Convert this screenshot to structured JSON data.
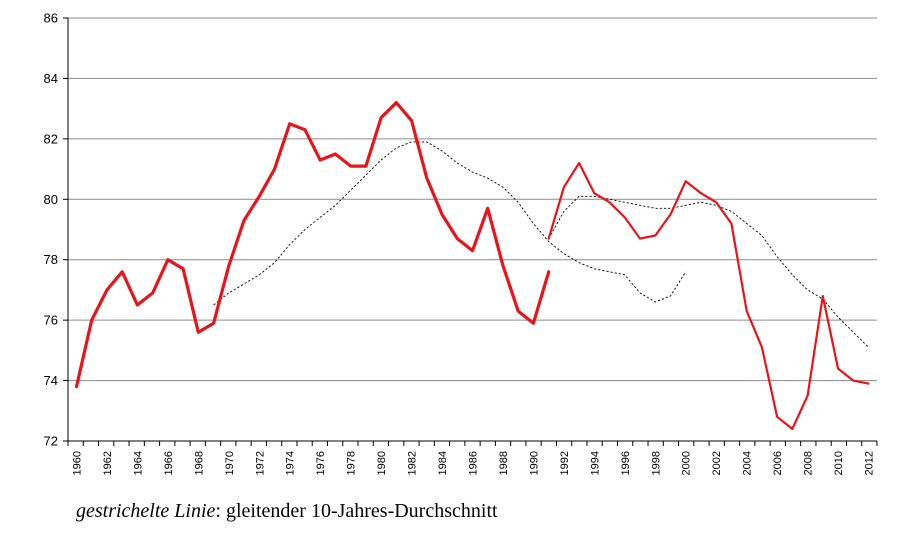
{
  "chart_data": {
    "type": "line",
    "title": "",
    "xlabel": "",
    "ylabel": "",
    "ylim": [
      72,
      86
    ],
    "yticks": [
      72,
      74,
      76,
      78,
      80,
      82,
      84,
      86
    ],
    "xlim": [
      1960,
      2012
    ],
    "xticks": [
      1960,
      1962,
      1964,
      1966,
      1968,
      1970,
      1972,
      1974,
      1976,
      1978,
      1980,
      1982,
      1984,
      1986,
      1988,
      1990,
      1992,
      1994,
      1996,
      1998,
      2000,
      2002,
      2004,
      2006,
      2008,
      2010,
      2012
    ],
    "grid": "horizontal",
    "colors": {
      "series": "#e8141b",
      "average": "#000000",
      "grid": "#8a8a8a"
    },
    "series": [
      {
        "segment": 1,
        "style": "thick",
        "x": [
          1960,
          1961,
          1962,
          1963,
          1964,
          1965,
          1966,
          1967,
          1968,
          1969,
          1970,
          1971,
          1972,
          1973,
          1974,
          1975,
          1976,
          1977,
          1978,
          1979,
          1980,
          1981,
          1982,
          1983,
          1984,
          1985,
          1986,
          1987,
          1988,
          1989,
          1990,
          1991
        ],
        "y": [
          73.8,
          76.0,
          77.0,
          77.6,
          76.5,
          76.9,
          78.0,
          77.7,
          75.6,
          75.9,
          77.8,
          79.3,
          80.1,
          81.0,
          82.5,
          82.3,
          81.3,
          81.5,
          81.1,
          81.1,
          82.7,
          83.2,
          82.6,
          80.7,
          79.5,
          78.7,
          78.3,
          79.7,
          77.8,
          76.3,
          75.9,
          77.6
        ]
      },
      {
        "segment": 2,
        "style": "thin",
        "x": [
          1991,
          1992,
          1993,
          1994,
          1995,
          1996,
          1997,
          1998,
          1999,
          2000,
          2001,
          2002,
          2003,
          2004,
          2005,
          2006,
          2007,
          2008,
          2009,
          2010,
          2011,
          2012
        ],
        "y": [
          78.7,
          80.4,
          81.2,
          80.2,
          79.9,
          79.4,
          78.7,
          78.8,
          79.5,
          80.6,
          80.2,
          79.9,
          79.2,
          76.3,
          75.1,
          72.8,
          72.4,
          73.5,
          76.8,
          74.4,
          74.0,
          73.9
        ]
      }
    ],
    "moving_average": [
      {
        "x": [
          1969,
          1970,
          1971,
          1972,
          1973,
          1974,
          1975,
          1976,
          1977,
          1978,
          1979,
          1980,
          1981,
          1982,
          1983,
          1984,
          1985,
          1986,
          1987,
          1988,
          1989,
          1990,
          1991,
          1992,
          1993,
          1994,
          1995,
          1996,
          1997,
          1998,
          1999,
          2000
        ],
        "y": [
          76.5,
          76.9,
          77.2,
          77.5,
          77.9,
          78.5,
          79.0,
          79.4,
          79.8,
          80.3,
          80.8,
          81.3,
          81.7,
          81.9,
          81.9,
          81.6,
          81.2,
          80.9,
          80.7,
          80.4,
          79.9,
          79.2,
          78.6,
          78.2,
          77.9,
          77.7,
          77.6,
          77.5,
          76.9,
          76.6,
          76.8,
          77.6
        ]
      },
      {
        "x": [
          1991,
          1992,
          1993,
          1994,
          1995,
          1996,
          1997,
          1998,
          1999,
          2000,
          2001,
          2002,
          2003,
          2004,
          2005,
          2006,
          2007,
          2008,
          2009,
          2010,
          2011,
          2012
        ],
        "y": [
          78.7,
          79.6,
          80.1,
          80.1,
          80.0,
          79.9,
          79.8,
          79.7,
          79.7,
          79.8,
          79.9,
          79.8,
          79.6,
          79.2,
          78.8,
          78.1,
          77.5,
          77.0,
          76.7,
          76.1,
          75.6,
          75.1
        ]
      }
    ]
  },
  "caption": {
    "italic": "gestrichelte Linie",
    "rest": ": gleitender 10-Jahres-Durchschnitt"
  }
}
